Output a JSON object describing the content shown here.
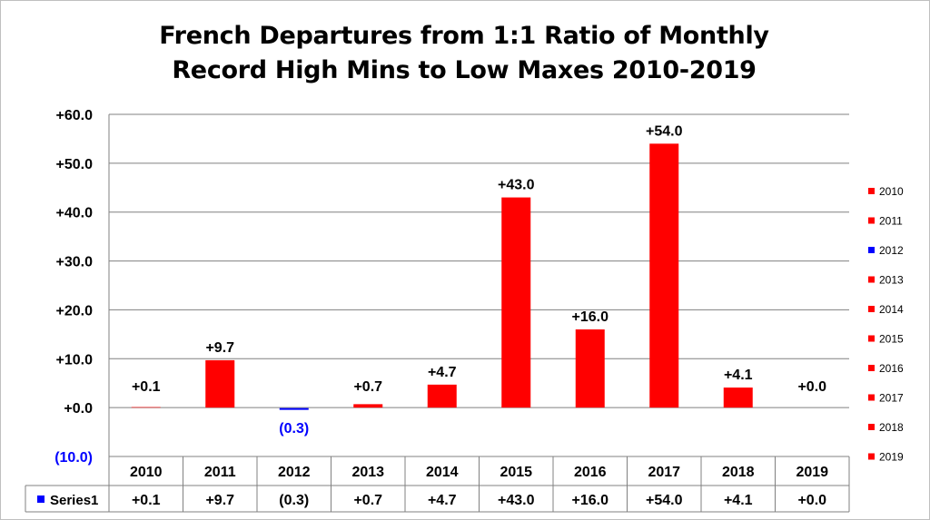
{
  "title_line1": "French Departures from 1:1 Ratio of Monthly",
  "title_line2": "Record High Mins to Low Maxes 2010-2019",
  "colors": {
    "positive": "#ff0000",
    "negative": "#0000ff",
    "negative_label": "#0000ff",
    "grid": "#808080"
  },
  "chart_data": {
    "type": "bar",
    "title": "French Departures from 1:1 Ratio of Monthly Record High Mins to Low Maxes 2010-2019",
    "categories": [
      "2010",
      "2011",
      "2012",
      "2013",
      "2014",
      "2015",
      "2016",
      "2017",
      "2018",
      "2019"
    ],
    "series": [
      {
        "name": "Series1",
        "values": [
          0.1,
          9.7,
          -0.3,
          0.7,
          4.7,
          43.0,
          16.0,
          54.0,
          4.1,
          0.0
        ]
      }
    ],
    "data_labels": [
      "+0.1",
      "+9.7",
      "(0.3)",
      "+0.7",
      "+4.7",
      "+43.0",
      "+16.0",
      "+54.0",
      "+4.1",
      "+0.0"
    ],
    "ylim": [
      -10,
      60
    ],
    "yticks": [
      -10,
      0,
      10,
      20,
      30,
      40,
      50,
      60
    ],
    "ytick_labels": [
      "(10.0)",
      "+0.0",
      "+10.0",
      "+20.0",
      "+30.0",
      "+40.0",
      "+50.0",
      "+60.0"
    ],
    "grid": true,
    "data_table": true,
    "legend_position": "right",
    "legend": [
      "2010",
      "2011",
      "2012",
      "2013",
      "2014",
      "2015",
      "2016",
      "2017",
      "2018",
      "2019"
    ],
    "xlabel": "",
    "ylabel": ""
  }
}
